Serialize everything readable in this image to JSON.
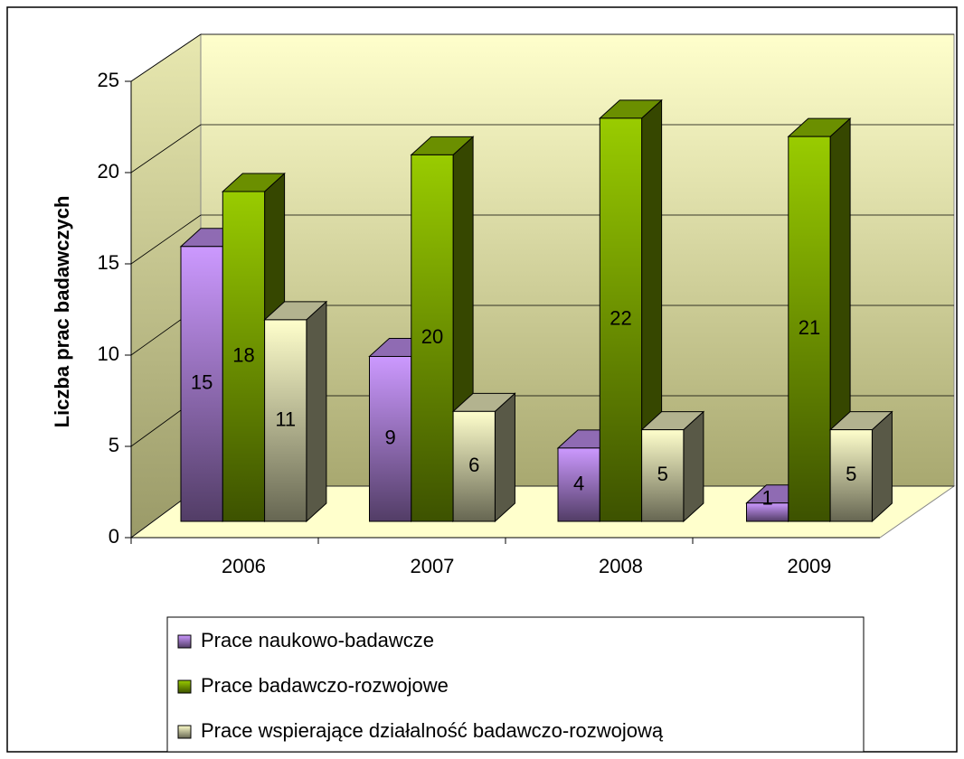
{
  "chart_data": {
    "type": "bar",
    "y_label": "Liczba prac badawczych",
    "categories": [
      "2006",
      "2007",
      "2008",
      "2009"
    ],
    "series": [
      {
        "name": "Prace naukowo-badawcze",
        "color": "#cc99ff",
        "values": [
          15,
          9,
          4,
          1
        ]
      },
      {
        "name": "Prace badawczo-rozwojowe",
        "color": "#99cc00",
        "values": [
          18,
          20,
          22,
          21
        ]
      },
      {
        "name": "Prace wspierające działalność badawczo-rozwojową",
        "color": "#ffffcc",
        "values": [
          11,
          6,
          5,
          5
        ]
      }
    ],
    "ylim": [
      0,
      25
    ],
    "yticks": [
      0,
      5,
      10,
      15,
      20,
      25
    ],
    "grid": true,
    "legend": "bottom"
  }
}
